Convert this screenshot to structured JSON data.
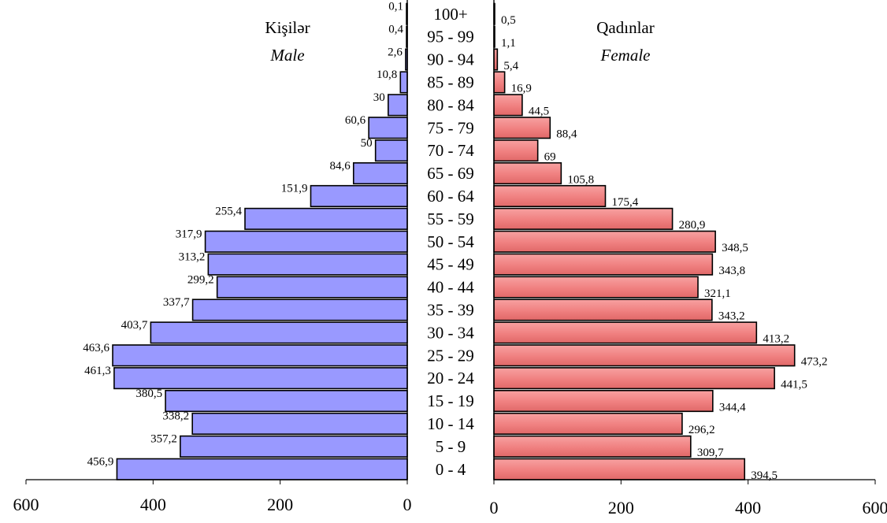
{
  "chart_data": {
    "type": "bar",
    "orientation": "horizontal-population-pyramid",
    "categories": [
      "0 - 4",
      "5 - 9",
      "10 - 14",
      "15 - 19",
      "20 - 24",
      "25 - 29",
      "30 - 34",
      "35 - 39",
      "40 - 44",
      "45 - 49",
      "50 - 54",
      "55 - 59",
      "60 - 64",
      "65 - 69",
      "70 - 74",
      "75 - 79",
      "80 - 84",
      "85 - 89",
      "90 - 94",
      "95 - 99",
      "100+"
    ],
    "series": [
      {
        "side": "left",
        "title": "Kişilər",
        "subtitle": "Male",
        "color": "#9999ff",
        "values": [
          456.9,
          357.2,
          338.2,
          380.5,
          461.3,
          463.6,
          403.7,
          337.7,
          299.2,
          313.2,
          317.9,
          255.4,
          151.9,
          84.6,
          50,
          60.6,
          30,
          10.8,
          2.6,
          0.4,
          0.1
        ],
        "labels": [
          "456,9",
          "357,2",
          "338,2",
          "380,5",
          "461,3",
          "463,6",
          "403,7",
          "337,7",
          "299,2",
          "313,2",
          "317,9",
          "255,4",
          "151,9",
          "84,6",
          "50",
          "60,6",
          "30",
          "10,8",
          "2,6",
          "0,4",
          "0,1"
        ]
      },
      {
        "side": "right",
        "title": "Qadınlar",
        "subtitle": "Female",
        "color": "#f08080",
        "values": [
          394.5,
          309.7,
          296.2,
          344.4,
          441.5,
          473.2,
          413.2,
          343.2,
          321.1,
          343.8,
          348.5,
          280.9,
          175.4,
          105.8,
          69,
          88.4,
          44.5,
          16.9,
          5.4,
          1.1,
          0.5
        ],
        "labels": [
          "394,5",
          "309,7",
          "296,2",
          "344,4",
          "441,5",
          "473,2",
          "413,2",
          "343,2",
          "321,1",
          "343,8",
          "348,5",
          "280,9",
          "175,4",
          "105,8",
          "69",
          "88,4",
          "44,5",
          "16,9",
          "5,4",
          "1,1",
          "0,5"
        ]
      }
    ],
    "xlim": [
      0,
      600
    ],
    "left_ticks": [
      "600",
      "400",
      "200",
      "0"
    ],
    "right_ticks": [
      "0",
      "200",
      "400",
      "600"
    ],
    "tick_values": [
      0,
      200,
      400,
      600
    ],
    "grid": false
  }
}
